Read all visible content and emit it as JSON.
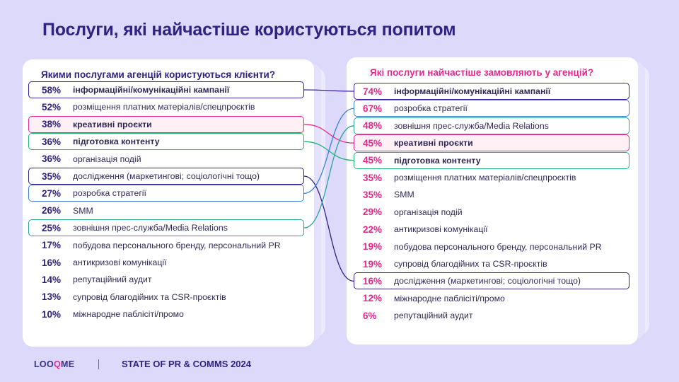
{
  "title": "Послуги, які найчастіше користуються попитом",
  "footer": {
    "logo_pre": "LOO",
    "logo_q": "Q",
    "logo_post": "ME",
    "report": "STATE OF PR & COMMS 2024"
  },
  "colors": {
    "purple": "#3b1fa6",
    "pink": "#e6288c",
    "green": "#22b573",
    "blue": "#3d7fd6",
    "teal": "#2aa39a",
    "navy": "#2f2280"
  },
  "chart_data": [
    {
      "type": "table",
      "title": "Якими послугами агенцій користуються клієнти?",
      "rows": [
        {
          "pct": "58%",
          "label": "інформаційні/комунікаційні кампанії",
          "value": 58,
          "highlight": "purple",
          "bold": true
        },
        {
          "pct": "52%",
          "label": "розміщення платних матеріалів/спецпроєктів",
          "value": 52
        },
        {
          "pct": "38%",
          "label": "креативні проєкти",
          "value": 38,
          "highlight": "pink",
          "bold": true
        },
        {
          "pct": "36%",
          "label": "підготовка контенту",
          "value": 36,
          "highlight": "green",
          "bold": true
        },
        {
          "pct": "36%",
          "label": "організація подій",
          "value": 36
        },
        {
          "pct": "35%",
          "label": "дослідження (маркетингові; соціологічні тощо)",
          "value": 35,
          "highlight": "navy"
        },
        {
          "pct": "27%",
          "label": "розробка стратегії",
          "value": 27,
          "highlight": "blue"
        },
        {
          "pct": "26%",
          "label": "SMM",
          "value": 26
        },
        {
          "pct": "25%",
          "label": "зовнішня прес-служба/Media Relations",
          "value": 25,
          "highlight": "teal"
        },
        {
          "pct": "17%",
          "label": "побудова персонального бренду, персональний PR",
          "value": 17
        },
        {
          "pct": "16%",
          "label": "антикризові комунікації",
          "value": 16
        },
        {
          "pct": "14%",
          "label": "репутаційний аудит",
          "value": 14
        },
        {
          "pct": "13%",
          "label": "супровід благодійних та CSR-проєктів",
          "value": 13
        },
        {
          "pct": "10%",
          "label": "міжнародне паблісіті/промо",
          "value": 10
        }
      ]
    },
    {
      "type": "table",
      "title": "Які послуги найчастіше замовляють у агенцій?",
      "rows": [
        {
          "pct": "74%",
          "label": "інформаційні/комунікаційні кампанії",
          "value": 74,
          "highlight": "purple",
          "bold": true
        },
        {
          "pct": "67%",
          "label": "розробка стратегії",
          "value": 67,
          "highlight": "blue"
        },
        {
          "pct": "48%",
          "label": "зовнішня прес-служба/Media Relations",
          "value": 48,
          "highlight": "teal"
        },
        {
          "pct": "45%",
          "label": "креативні проєкти",
          "value": 45,
          "highlight": "pink",
          "bold": true
        },
        {
          "pct": "45%",
          "label": "підготовка контенту",
          "value": 45,
          "highlight": "green",
          "bold": true
        },
        {
          "pct": "35%",
          "label": "розміщення платних матеріалів/спецпроєктів",
          "value": 35
        },
        {
          "pct": "35%",
          "label": "SMM",
          "value": 35
        },
        {
          "pct": "29%",
          "label": "організація подій",
          "value": 29
        },
        {
          "pct": "22%",
          "label": "антикризові комунікації",
          "value": 22
        },
        {
          "pct": "19%",
          "label": "побудова персонального бренду, персональний PR",
          "value": 19
        },
        {
          "pct": "19%",
          "label": "супровід благодійних та CSR-проєктів",
          "value": 19
        },
        {
          "pct": "16%",
          "label": "дослідження (маркетингові; соціологічні тощо)",
          "value": 16,
          "highlight": "navy"
        },
        {
          "pct": "12%",
          "label": "міжнародне паблісіті/промо",
          "value": 12
        },
        {
          "pct": "6%",
          "label": "репутаційний аудит",
          "value": 6
        }
      ]
    }
  ]
}
